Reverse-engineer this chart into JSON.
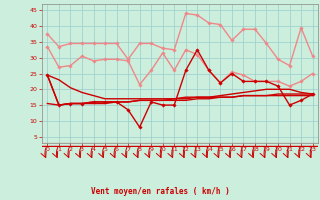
{
  "xlabel": "Vent moyen/en rafales ( km/h )",
  "xlim": [
    -0.5,
    23.5
  ],
  "ylim": [
    3,
    47
  ],
  "yticks": [
    5,
    10,
    15,
    20,
    25,
    30,
    35,
    40,
    45
  ],
  "xticks": [
    0,
    1,
    2,
    3,
    4,
    5,
    6,
    7,
    8,
    9,
    10,
    11,
    12,
    13,
    14,
    15,
    16,
    17,
    18,
    19,
    20,
    21,
    22,
    23
  ],
  "background_color": "#cceedd",
  "grid_color": "#99cccc",
  "dark_red": "#cc0000",
  "light_red": "#ee8888",
  "series": [
    {
      "x": [
        0,
        1,
        2,
        3,
        4,
        5,
        6,
        7,
        8,
        9,
        10,
        11,
        12,
        13,
        14,
        15,
        16,
        17,
        18,
        19,
        20,
        21,
        22,
        23
      ],
      "y": [
        37.5,
        33.5,
        34.5,
        34.5,
        34.5,
        34.5,
        34.5,
        29.5,
        34.5,
        34.5,
        33.0,
        32.5,
        44.0,
        43.5,
        41.0,
        40.5,
        35.5,
        39.0,
        39.0,
        34.5,
        29.5,
        27.5,
        39.5,
        30.5
      ],
      "color": "#ee8888",
      "lw": 1.0,
      "marker": "D",
      "ms": 1.8
    },
    {
      "x": [
        0,
        1,
        2,
        3,
        4,
        5,
        6,
        7,
        8,
        9,
        10,
        11,
        12,
        13,
        14,
        15,
        16,
        17,
        18,
        19,
        20,
        21,
        22,
        23
      ],
      "y": [
        33.5,
        27.0,
        27.5,
        30.5,
        29.0,
        29.5,
        29.5,
        29.0,
        21.5,
        26.0,
        31.5,
        26.0,
        32.5,
        31.0,
        26.0,
        22.0,
        25.5,
        24.5,
        22.5,
        22.5,
        22.5,
        21.0,
        22.5,
        25.0
      ],
      "color": "#ee8888",
      "lw": 1.0,
      "marker": "D",
      "ms": 1.8
    },
    {
      "x": [
        0,
        1,
        2,
        3,
        4,
        5,
        6,
        7,
        8,
        9,
        10,
        11,
        12,
        13,
        14,
        15,
        16,
        17,
        18,
        19,
        20,
        21,
        22,
        23
      ],
      "y": [
        24.5,
        23.0,
        20.5,
        19.0,
        18.0,
        17.0,
        17.0,
        17.0,
        17.0,
        17.0,
        17.0,
        17.0,
        17.5,
        17.5,
        17.5,
        18.0,
        18.5,
        19.0,
        19.5,
        20.0,
        20.0,
        20.0,
        19.0,
        18.5
      ],
      "color": "#cc0000",
      "lw": 1.0,
      "marker": null,
      "ms": 0
    },
    {
      "x": [
        0,
        1,
        2,
        3,
        4,
        5,
        6,
        7,
        8,
        9,
        10,
        11,
        12,
        13,
        14,
        15,
        16,
        17,
        18,
        19,
        20,
        21,
        22,
        23
      ],
      "y": [
        24.5,
        15.0,
        15.5,
        15.5,
        16.0,
        16.0,
        16.0,
        13.5,
        8.0,
        16.0,
        15.0,
        15.0,
        26.0,
        32.5,
        26.0,
        22.0,
        25.0,
        22.5,
        22.5,
        22.5,
        21.0,
        15.0,
        16.5,
        18.5
      ],
      "color": "#cc0000",
      "lw": 1.0,
      "marker": "D",
      "ms": 1.8
    },
    {
      "x": [
        0,
        1,
        2,
        3,
        4,
        5,
        6,
        7,
        8,
        9,
        10,
        11,
        12,
        13,
        14,
        15,
        16,
        17,
        18,
        19,
        20,
        21,
        22,
        23
      ],
      "y": [
        24.5,
        15.0,
        15.5,
        15.5,
        16.0,
        16.0,
        16.0,
        16.0,
        16.5,
        16.5,
        16.5,
        16.5,
        16.5,
        17.0,
        17.0,
        17.5,
        17.5,
        18.0,
        18.0,
        18.0,
        18.5,
        18.5,
        18.5,
        18.5
      ],
      "color": "#cc0000",
      "lw": 1.0,
      "marker": null,
      "ms": 0
    },
    {
      "x": [
        0,
        1,
        2,
        3,
        4,
        5,
        6,
        7,
        8,
        9,
        10,
        11,
        12,
        13,
        14,
        15,
        16,
        17,
        18,
        19,
        20,
        21,
        22,
        23
      ],
      "y": [
        15.5,
        15.0,
        15.5,
        15.5,
        15.5,
        15.5,
        16.0,
        16.0,
        16.5,
        16.5,
        16.5,
        17.0,
        17.0,
        17.5,
        17.5,
        17.5,
        17.5,
        18.0,
        18.0,
        18.0,
        18.0,
        18.0,
        18.0,
        18.0
      ],
      "color": "#cc0000",
      "lw": 1.0,
      "marker": null,
      "ms": 0
    }
  ]
}
